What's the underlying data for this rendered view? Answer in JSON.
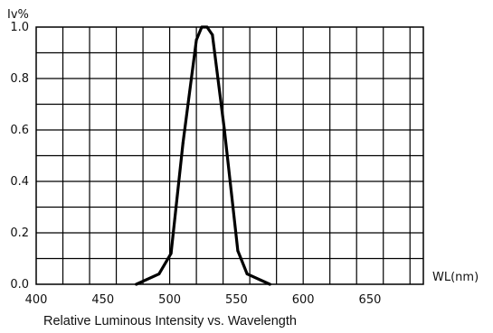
{
  "chart_data": {
    "type": "line",
    "title": "Relative Luminous Intensity vs. Wavelength",
    "xlabel": "WL(nm)",
    "ylabel": "Iv%",
    "xlim": [
      400,
      690
    ],
    "ylim": [
      0,
      1.0
    ],
    "x_ticks": [
      "400",
      "450",
      "500",
      "550",
      "600",
      "650"
    ],
    "y_ticks": [
      "1.0",
      "0.8",
      "0.6",
      "0.4",
      "0.2",
      "0.0"
    ],
    "grid": true,
    "series": [
      {
        "x": [
          475,
          492,
          501,
          510,
          520,
          524,
          528,
          532,
          541,
          551,
          558,
          575
        ],
        "y": [
          0.0,
          0.04,
          0.12,
          0.55,
          0.95,
          1.0,
          1.0,
          0.97,
          0.6,
          0.13,
          0.04,
          0.0
        ]
      }
    ]
  }
}
